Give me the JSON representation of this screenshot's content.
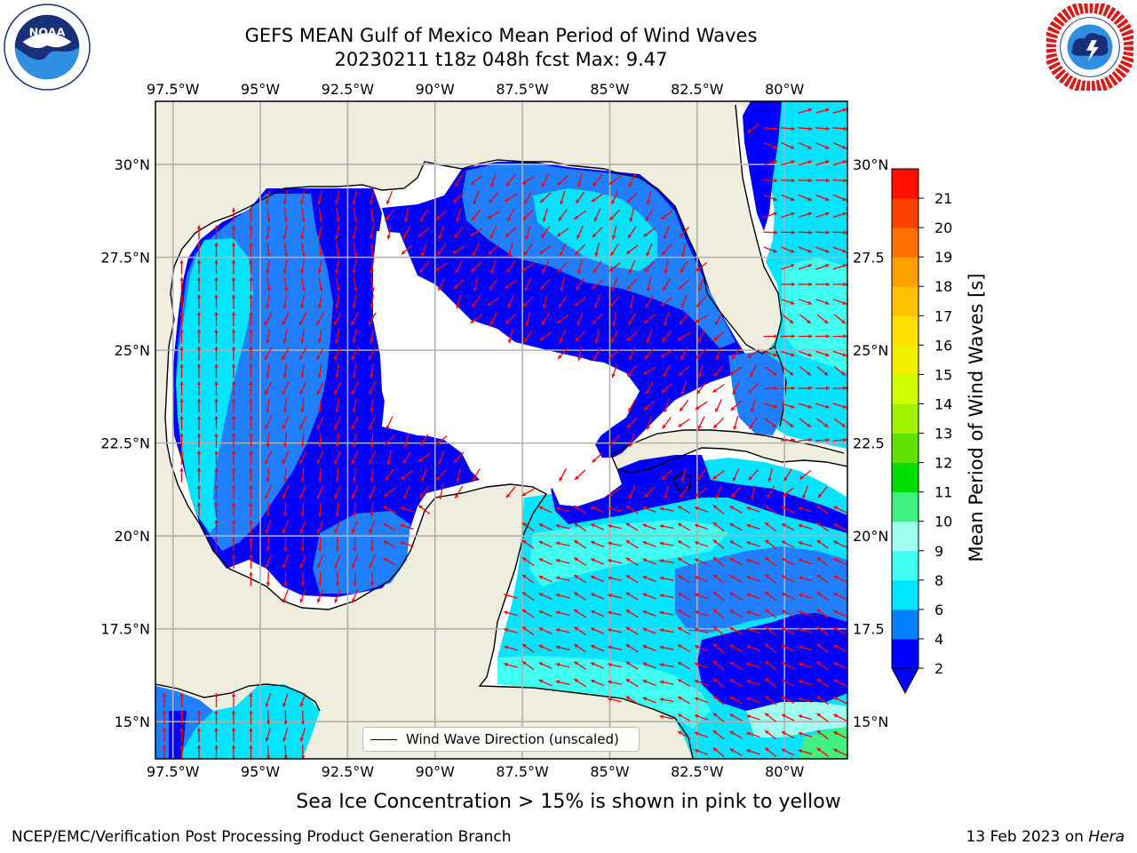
{
  "header": {
    "title_line1": "GEFS MEAN Gulf of Mexico Mean Period of Wind Waves",
    "title_line2": "20230211 t18z 048h fcst   Max: 9.47"
  },
  "logos": {
    "left": {
      "name": "noaa-logo",
      "text": "NOAA",
      "ring_text": "NATIONAL OCEANIC AND ATMOSPHERIC ADMINISTRATION · U.S. DEPARTMENT OF COMMERCE"
    },
    "right": {
      "name": "nws-logo",
      "ring_text": "NATIONAL WEATHER SERVICE"
    }
  },
  "map": {
    "lon_labels": [
      "97.5°W",
      "95°W",
      "92.5°W",
      "90°W",
      "87.5°W",
      "85°W",
      "82.5°W",
      "80°W"
    ],
    "lon_values": [
      -97.5,
      -95,
      -92.5,
      -90,
      -87.5,
      -85,
      -82.5,
      -80
    ],
    "lat_labels": [
      "30°N",
      "27.5°N",
      "25°N",
      "22.5°N",
      "20°N",
      "17.5°N",
      "15°N"
    ],
    "lat_labels_right": [
      "30°N",
      "27.5",
      "25°N",
      "22.5",
      "20°N",
      "17.5",
      "15°N"
    ],
    "lat_values": [
      30,
      27.5,
      25,
      22.5,
      20,
      17.5,
      15
    ],
    "extent": {
      "lon_min": -98,
      "lon_max": -78.2,
      "lat_min": 14,
      "lat_max": 31.7
    },
    "legend_label": "Wind Wave Direction (unscaled)",
    "colors": {
      "land": "#efedde",
      "ocean_no_data": "#ffffff",
      "coast": "#000000",
      "grid": "#b0b0b0",
      "arrow": "#ff0000"
    }
  },
  "colorbar": {
    "label": "Mean Period of Wind Waves [s]",
    "ticks": [
      "2",
      "4",
      "6",
      "8",
      "9",
      "10",
      "11",
      "12",
      "13",
      "14",
      "15",
      "16",
      "17",
      "18",
      "19",
      "20",
      "21"
    ],
    "colors": [
      "#0000ff",
      "#0080ff",
      "#00e5ff",
      "#40fff0",
      "#a0fff0",
      "#40f080",
      "#00e000",
      "#60e000",
      "#a0f000",
      "#d0ff00",
      "#f0f000",
      "#ffe000",
      "#ffc000",
      "#ff9f00",
      "#ff7000",
      "#ff4000",
      "#ff1000"
    ],
    "extend_color": "#0000ff"
  },
  "footer": {
    "note": "Sea Ice Concentration > 15% is shown in pink to yellow",
    "left": "NCEP/EMC/Verification Post Processing Product Generation Branch",
    "right_prefix": "13 Feb 2023 on ",
    "right_machine": "Hera"
  }
}
